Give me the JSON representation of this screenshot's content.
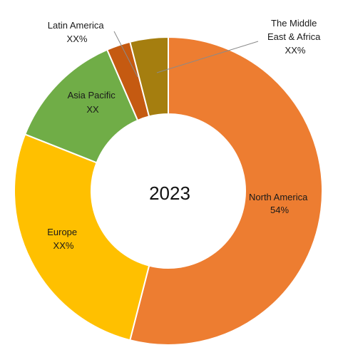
{
  "chart_data": {
    "type": "donut",
    "center_label": "2023",
    "slices": [
      {
        "name": "North America",
        "value_label": "54%",
        "value": 54,
        "color": "#ED7D31"
      },
      {
        "name": "Europe",
        "value_label": "XX%",
        "value": 27,
        "color": "#FFC000"
      },
      {
        "name": "Asia Pacific",
        "value_label": "XX",
        "value": 12.5,
        "color": "#70AD47"
      },
      {
        "name": "Latin America",
        "value_label": "XX%",
        "value": 2.5,
        "color": "#C55A11"
      },
      {
        "name": "The Middle East & Africa",
        "value_label": "XX%",
        "value": 4,
        "color": "#A57E0F"
      }
    ],
    "labels": {
      "north_america": [
        "North America",
        "54%"
      ],
      "europe": [
        "Europe",
        "XX%"
      ],
      "asia_pacific": [
        "Asia Pacific",
        "XX"
      ],
      "latin_america": [
        "Latin America",
        "XX%"
      ],
      "mea": [
        "The Middle",
        "East & Africa",
        "XX%"
      ]
    }
  }
}
